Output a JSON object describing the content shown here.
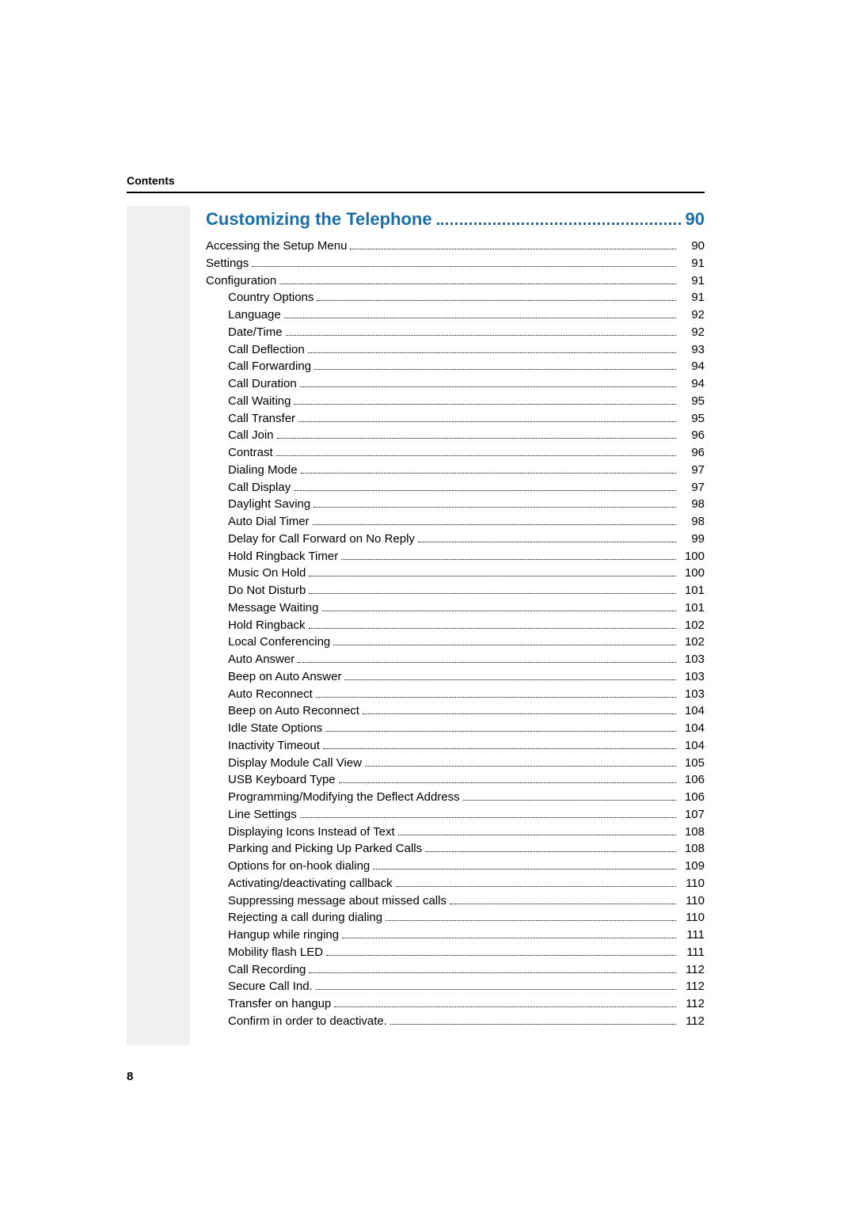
{
  "header_label": "Contents",
  "section": {
    "title": "Customizing the Telephone",
    "page": "90",
    "title_color": "#1b6fa8",
    "title_fontsize": 22
  },
  "entries": [
    {
      "label": "Accessing the Setup Menu",
      "page": "90",
      "indent": 0
    },
    {
      "label": "Settings",
      "page": "91",
      "indent": 0
    },
    {
      "label": "Configuration",
      "page": "91",
      "indent": 0
    },
    {
      "label": "Country Options",
      "page": "91",
      "indent": 1
    },
    {
      "label": "Language",
      "page": "92",
      "indent": 1
    },
    {
      "label": "Date/Time",
      "page": "92",
      "indent": 1
    },
    {
      "label": "Call Deflection",
      "page": "93",
      "indent": 1
    },
    {
      "label": "Call Forwarding",
      "page": "94",
      "indent": 1
    },
    {
      "label": "Call Duration",
      "page": "94",
      "indent": 1
    },
    {
      "label": "Call Waiting",
      "page": "95",
      "indent": 1
    },
    {
      "label": "Call Transfer",
      "page": "95",
      "indent": 1
    },
    {
      "label": "Call Join",
      "page": "96",
      "indent": 1
    },
    {
      "label": "Contrast",
      "page": "96",
      "indent": 1
    },
    {
      "label": "Dialing Mode",
      "page": "97",
      "indent": 1
    },
    {
      "label": "Call Display",
      "page": "97",
      "indent": 1
    },
    {
      "label": "Daylight Saving",
      "page": "98",
      "indent": 1
    },
    {
      "label": "Auto Dial Timer",
      "page": "98",
      "indent": 1
    },
    {
      "label": "Delay for Call Forward on No Reply",
      "page": "99",
      "indent": 1
    },
    {
      "label": "Hold Ringback Timer",
      "page": "100",
      "indent": 1
    },
    {
      "label": "Music On Hold",
      "page": "100",
      "indent": 1
    },
    {
      "label": "Do Not Disturb",
      "page": "101",
      "indent": 1
    },
    {
      "label": "Message Waiting",
      "page": "101",
      "indent": 1
    },
    {
      "label": "Hold Ringback",
      "page": "102",
      "indent": 1
    },
    {
      "label": "Local Conferencing",
      "page": "102",
      "indent": 1
    },
    {
      "label": "Auto Answer",
      "page": "103",
      "indent": 1
    },
    {
      "label": "Beep on Auto Answer",
      "page": "103",
      "indent": 1
    },
    {
      "label": "Auto Reconnect",
      "page": "103",
      "indent": 1
    },
    {
      "label": "Beep on Auto Reconnect",
      "page": "104",
      "indent": 1
    },
    {
      "label": "Idle State Options",
      "page": "104",
      "indent": 1
    },
    {
      "label": "Inactivity Timeout",
      "page": "104",
      "indent": 1
    },
    {
      "label": "Display Module Call View",
      "page": "105",
      "indent": 1
    },
    {
      "label": "USB Keyboard Type",
      "page": "106",
      "indent": 1
    },
    {
      "label": "Programming/Modifying the Deflect Address",
      "page": "106",
      "indent": 1
    },
    {
      "label": "Line Settings",
      "page": "107",
      "indent": 1
    },
    {
      "label": "Displaying Icons Instead of Text",
      "page": "108",
      "indent": 1
    },
    {
      "label": "Parking and Picking Up Parked Calls",
      "page": "108",
      "indent": 1
    },
    {
      "label": "Options for on-hook dialing",
      "page": "109",
      "indent": 1
    },
    {
      "label": "Activating/deactivating callback",
      "page": "110",
      "indent": 1
    },
    {
      "label": "Suppressing message about missed calls",
      "page": "110",
      "indent": 1
    },
    {
      "label": "Rejecting a call during dialing",
      "page": "110",
      "indent": 1
    },
    {
      "label": "Hangup while ringing",
      "page": "111",
      "indent": 1
    },
    {
      "label": "Mobility flash LED",
      "page": "111",
      "indent": 1
    },
    {
      "label": "Call Recording",
      "page": "112",
      "indent": 1
    },
    {
      "label": "Secure Call Ind.",
      "page": "112",
      "indent": 1
    },
    {
      "label": "Transfer on hangup",
      "page": "112",
      "indent": 1
    },
    {
      "label": "Confirm in order to deactivate.",
      "page": "112",
      "indent": 1
    }
  ],
  "footer_page_number": "8",
  "style": {
    "body_font_size": 15,
    "line_color": "#000000",
    "stripe_color": "#f0f0f0",
    "bg_color": "#ffffff",
    "content_width": 630
  }
}
